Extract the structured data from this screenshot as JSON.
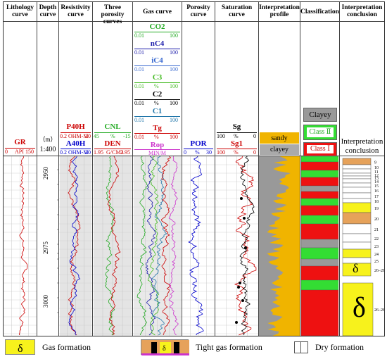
{
  "headers": {
    "lithology": "Lithology curve",
    "depth": "Depth curve",
    "resistivity": "Resistivity curve",
    "porosity3": "Three porosity curves",
    "gas": "Gas curve",
    "porosity": "Porosity curve",
    "saturation": "Saturation curve",
    "profile": "Interpretation profile",
    "classification": "Classification",
    "conclusion": "Interpretation conclusion"
  },
  "tracks": {
    "gr": {
      "name": "GR",
      "unit": "API",
      "min": "0",
      "max": "150",
      "color": "#cc0000"
    },
    "depth": {
      "unit": "（m）",
      "scale": "1:400"
    },
    "p40h": {
      "name": "P40H",
      "unit": "OHM-M",
      "min": "0.2",
      "max": "20",
      "color": "#cc0000"
    },
    "a40h": {
      "name": "A40H",
      "unit": "OHM-M",
      "min": "0.2",
      "max": "20",
      "color": "#0000cc"
    },
    "cnl": {
      "name": "CNL",
      "unit": "%",
      "min": "45",
      "max": "-15",
      "color": "#22aa22"
    },
    "den": {
      "name": "DEN",
      "unit": "G/CM3",
      "min": "1.95",
      "max": "2.95",
      "color": "#cc0000"
    },
    "co2": {
      "name": "CO2",
      "min": "0.01",
      "max": "100",
      "color": "#22aa22"
    },
    "nc4": {
      "name": "nC4",
      "min": "0.01",
      "max": "100",
      "color": "#1a1aaa"
    },
    "ic4": {
      "name": "iC4",
      "min": "0.01",
      "max": "100",
      "color": "#3a6ad0"
    },
    "c3": {
      "name": "C3",
      "min": "0.01",
      "unit": "%",
      "max": "100",
      "color": "#44bb22"
    },
    "c2": {
      "name": "C2",
      "min": "0.01",
      "unit": "%",
      "max": "100",
      "color": "#000000"
    },
    "c1": {
      "name": "C1",
      "min": "0.01",
      "max": "100",
      "color": "#2277aa"
    },
    "tg": {
      "name": "Tg",
      "min": "0.01",
      "unit": "%",
      "max": "100",
      "color": "#cc0000"
    },
    "rop": {
      "name": "Rop",
      "unit": "MIN/M",
      "color": "#cc33cc"
    },
    "por": {
      "name": "POR",
      "min": "0",
      "unit": "%",
      "max": "30",
      "color": "#0000cc"
    },
    "sg": {
      "name": "Sg",
      "min": "100",
      "unit": "%",
      "max": "0",
      "color": "#000000"
    },
    "sg1": {
      "name": "Sg1",
      "min": "100",
      "unit": "%",
      "max": "0",
      "color": "#cc0000"
    }
  },
  "depth_ticks": [
    "2950",
    "2975",
    "3000"
  ],
  "profile_legend": {
    "sandy": "sandy",
    "clayey": "clayey"
  },
  "class_legend": {
    "clayey": "Clayey",
    "class2": "Class Ⅱ",
    "class1": "Class Ⅰ"
  },
  "conclusion_title": "Interpretation conclusion",
  "layer_numbers": [
    "9",
    "10",
    "11",
    "12",
    "13",
    "14",
    "15",
    "16",
    "17",
    "18",
    "19",
    "20",
    "21",
    "22",
    "23",
    "24",
    "25",
    "26–28"
  ],
  "legend": {
    "gas": "Gas formation",
    "tight": "Tight gas formation",
    "dry": "Dry formation"
  },
  "colors": {
    "gas_yellow": "#f7f21c",
    "class_red": "#ee1111",
    "class_green": "#33dd33",
    "profile_orange": "#f0b400",
    "profile_gray": "#999999",
    "track_gray": "#d8d8d8"
  }
}
